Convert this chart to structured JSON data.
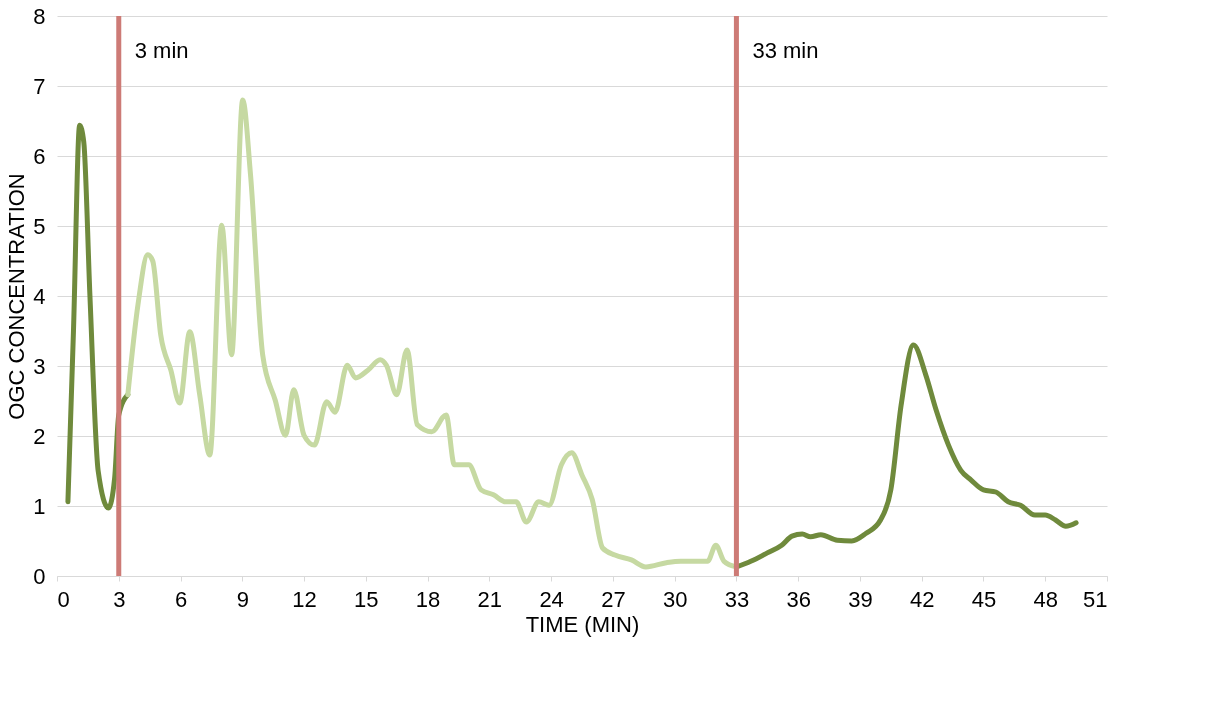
{
  "chart_data": {
    "type": "line",
    "xlabel": "TIME (MIN)",
    "ylabel": "OGC CONCENTRATION",
    "xlim": [
      0,
      51
    ],
    "xticks": [
      0,
      3,
      6,
      9,
      12,
      15,
      18,
      21,
      24,
      27,
      30,
      33,
      36,
      39,
      42,
      45,
      48,
      51
    ],
    "ylim": [
      0,
      8
    ],
    "yticks": [
      0,
      1,
      2,
      3,
      4,
      5,
      6,
      7,
      8
    ],
    "grid": "y",
    "legend": false,
    "line_style": "solid",
    "marker": "none",
    "series": [
      {
        "color": "#6f8a3c",
        "x": [
          0.53,
          0.8,
          1.1,
          1.3,
          1.6,
          2.0,
          2.5,
          2.8,
          3.0,
          3.44
        ],
        "values": [
          1.06,
          3.5,
          6.44,
          6.2,
          4.0,
          1.5,
          0.97,
          1.4,
          2.3,
          2.59
        ]
      },
      {
        "color": "#c6d9a2",
        "x": [
          3.44,
          3.93,
          4.41,
          4.65,
          5.04,
          5.53,
          5.96,
          6.45,
          6.93,
          7.42,
          8.0,
          8.48,
          9.02,
          9.4,
          9.99,
          10.6,
          11.1,
          11.5,
          12.0,
          12.5,
          13.1,
          13.5,
          14.1,
          14.5,
          15.1,
          15.7,
          16.0,
          16.5,
          17.0,
          17.5,
          18.2,
          18.9,
          19.3,
          20.0,
          20.6,
          21.2,
          21.8,
          22.3,
          22.8,
          23.4,
          23.9,
          24.5,
          25.0,
          25.5,
          26.0,
          26.5,
          27.1,
          27.9,
          28.6,
          29.6,
          30.3,
          31.1,
          31.6,
          32.0,
          32.4,
          33.0
        ],
        "values": [
          2.59,
          3.87,
          4.59,
          4.5,
          3.44,
          2.94,
          2.47,
          3.49,
          2.59,
          1.73,
          5.01,
          3.16,
          6.8,
          5.73,
          3.16,
          2.51,
          2.01,
          2.66,
          2.01,
          1.87,
          2.49,
          2.34,
          3.01,
          2.83,
          2.94,
          3.09,
          3.01,
          2.59,
          3.23,
          2.16,
          2.06,
          2.3,
          1.59,
          1.59,
          1.23,
          1.16,
          1.06,
          1.06,
          0.77,
          1.06,
          1.01,
          1.59,
          1.76,
          1.44,
          1.09,
          0.4,
          0.3,
          0.23,
          0.13,
          0.19,
          0.21,
          0.21,
          0.21,
          0.44,
          0.21,
          0.13
        ]
      },
      {
        "color": "#6f8a3c",
        "x": [
          33.0,
          33.7,
          34.5,
          35.2,
          35.7,
          36.2,
          36.6,
          37.1,
          37.9,
          38.6,
          39.3,
          40.0,
          40.5,
          41.0,
          41.6,
          42.2,
          42.7,
          43.3,
          43.9,
          44.4,
          45.0,
          45.6,
          46.2,
          46.8,
          47.5,
          48.0,
          48.5,
          49.0,
          49.5
        ],
        "values": [
          0.13,
          0.21,
          0.33,
          0.44,
          0.57,
          0.6,
          0.56,
          0.59,
          0.51,
          0.5,
          0.61,
          0.8,
          1.23,
          2.44,
          3.3,
          2.87,
          2.37,
          1.87,
          1.51,
          1.37,
          1.23,
          1.2,
          1.06,
          1.01,
          0.87,
          0.87,
          0.8,
          0.71,
          0.76
        ]
      }
    ],
    "ref_lines": [
      {
        "axis": "x",
        "value": 3,
        "label": "3 min",
        "color": "#cd7b76"
      },
      {
        "axis": "x",
        "value": 33,
        "label": "33 min",
        "color": "#cd7b76"
      }
    ]
  }
}
